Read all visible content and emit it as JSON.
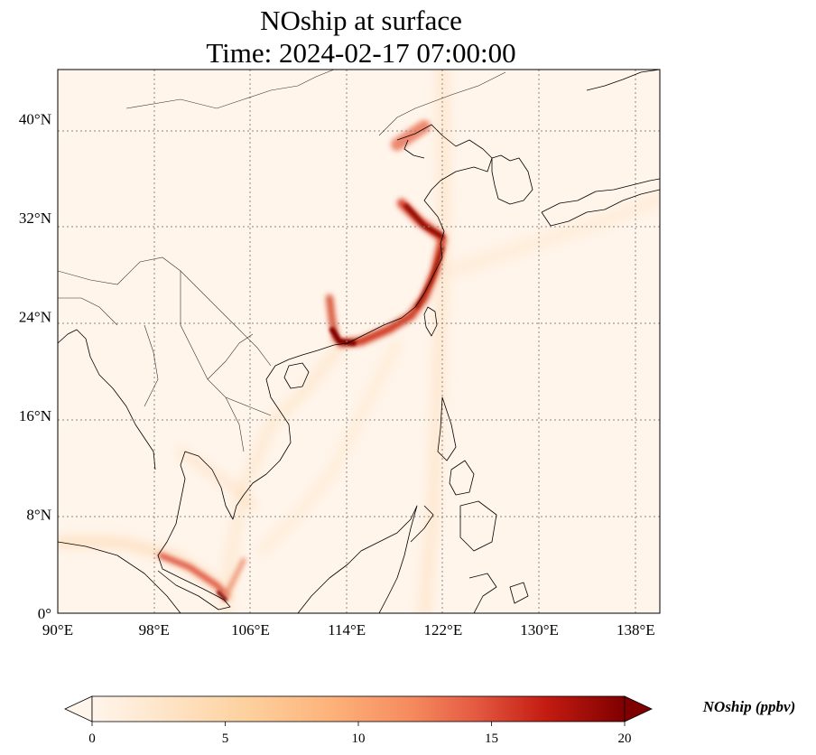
{
  "title": {
    "line1": "NOship at surface",
    "line2": "Time: 2024-02-17 07:00:00"
  },
  "map": {
    "lon_range": [
      90,
      140
    ],
    "lat_range": [
      0,
      44
    ],
    "lon_ticks": [
      {
        "value": 90,
        "label": "90°E"
      },
      {
        "value": 98,
        "label": "98°E"
      },
      {
        "value": 106,
        "label": "106°E"
      },
      {
        "value": 114,
        "label": "114°E"
      },
      {
        "value": 122,
        "label": "122°E"
      },
      {
        "value": 130,
        "label": "130°E"
      },
      {
        "value": 138,
        "label": "138°E"
      }
    ],
    "lat_ticks": [
      {
        "value": 0,
        "label": "0°"
      },
      {
        "value": 8,
        "label": "8°N"
      },
      {
        "value": 16,
        "label": "16°N"
      },
      {
        "value": 24,
        "label": "24°N"
      },
      {
        "value": 32,
        "label": "32°N"
      },
      {
        "value": 40,
        "label": "40°N"
      }
    ],
    "gridlines": true,
    "background_color": "#fff5eb",
    "colormap": "OrRd"
  },
  "colorbar": {
    "title": "NOship (ppbv)",
    "ticks": [
      {
        "value": 0,
        "label": "0"
      },
      {
        "value": 5,
        "label": "5"
      },
      {
        "value": 10,
        "label": "10"
      },
      {
        "value": 15,
        "label": "15"
      },
      {
        "value": 20,
        "label": "20"
      }
    ],
    "range": [
      0,
      20
    ],
    "extend": "both",
    "colors": [
      "#fff5eb",
      "#fee6ce",
      "#fdd0a2",
      "#fdae6b",
      "#fd8d3c",
      "#f16913",
      "#d94801",
      "#a63603",
      "#7f0000"
    ]
  }
}
